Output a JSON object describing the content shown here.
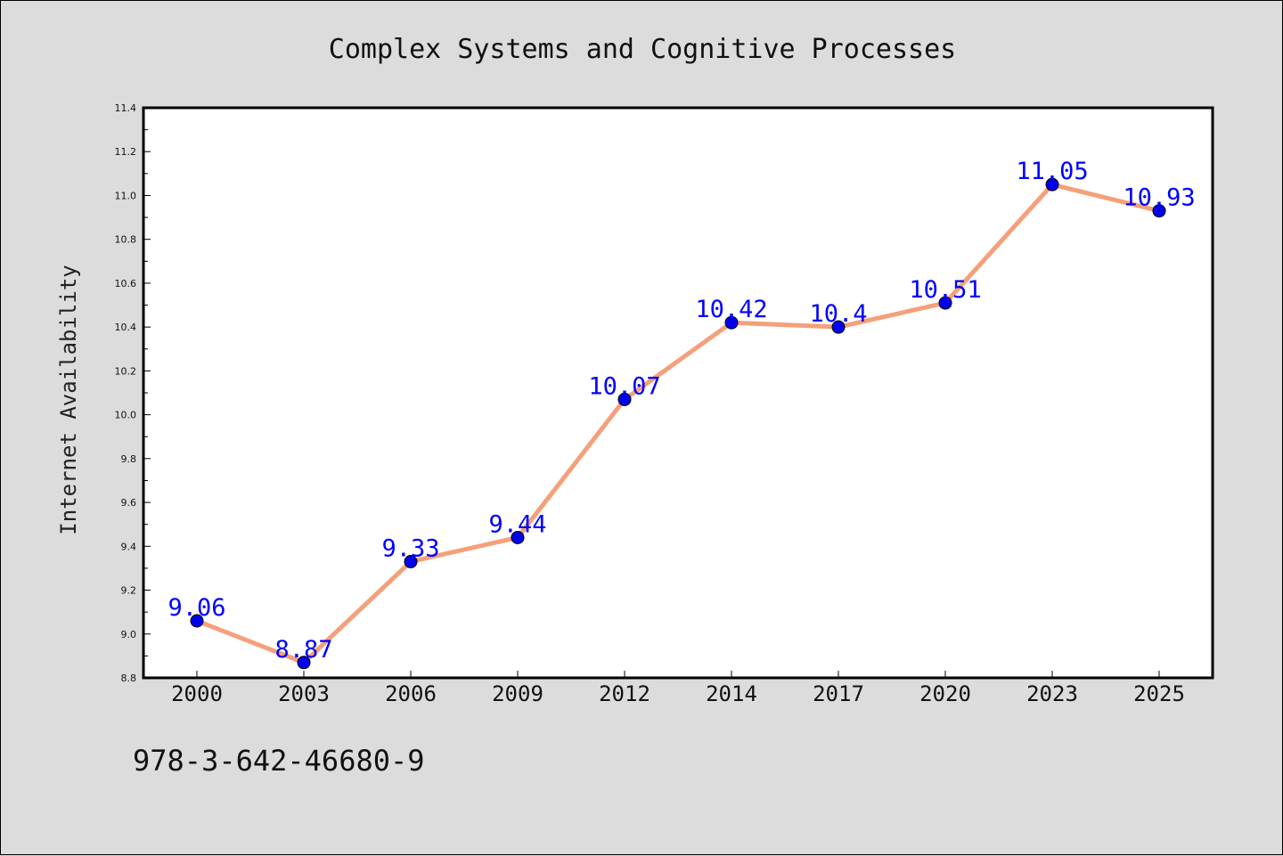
{
  "chart_data": {
    "type": "line",
    "title": "Complex Systems and Cognitive Processes",
    "ylabel": "Internet Availability",
    "xlabel": "",
    "categories": [
      "2000",
      "2003",
      "2006",
      "2009",
      "2012",
      "2014",
      "2017",
      "2020",
      "2023",
      "2025"
    ],
    "values": [
      9.06,
      8.87,
      9.33,
      9.44,
      10.07,
      10.42,
      10.4,
      10.51,
      11.05,
      10.93
    ],
    "value_labels": [
      "9.06",
      "8.87",
      "9.33",
      "9.44",
      "10.07",
      "10.42",
      "10.4",
      "10.51",
      "11.05",
      "10.93"
    ],
    "ylim": [
      8.8,
      11.4
    ],
    "yticks": [
      "8.8",
      "9.0",
      "9.2",
      "9.4",
      "9.6",
      "9.8",
      "10.0",
      "10.2",
      "10.4",
      "10.6",
      "10.8",
      "11.0",
      "11.2",
      "11.4"
    ],
    "grid": false,
    "colors": {
      "line": "#f4a07a",
      "marker": "#0000ee",
      "label": "#0000ff"
    }
  },
  "footer": {
    "code": "978-3-642-46680-9"
  }
}
